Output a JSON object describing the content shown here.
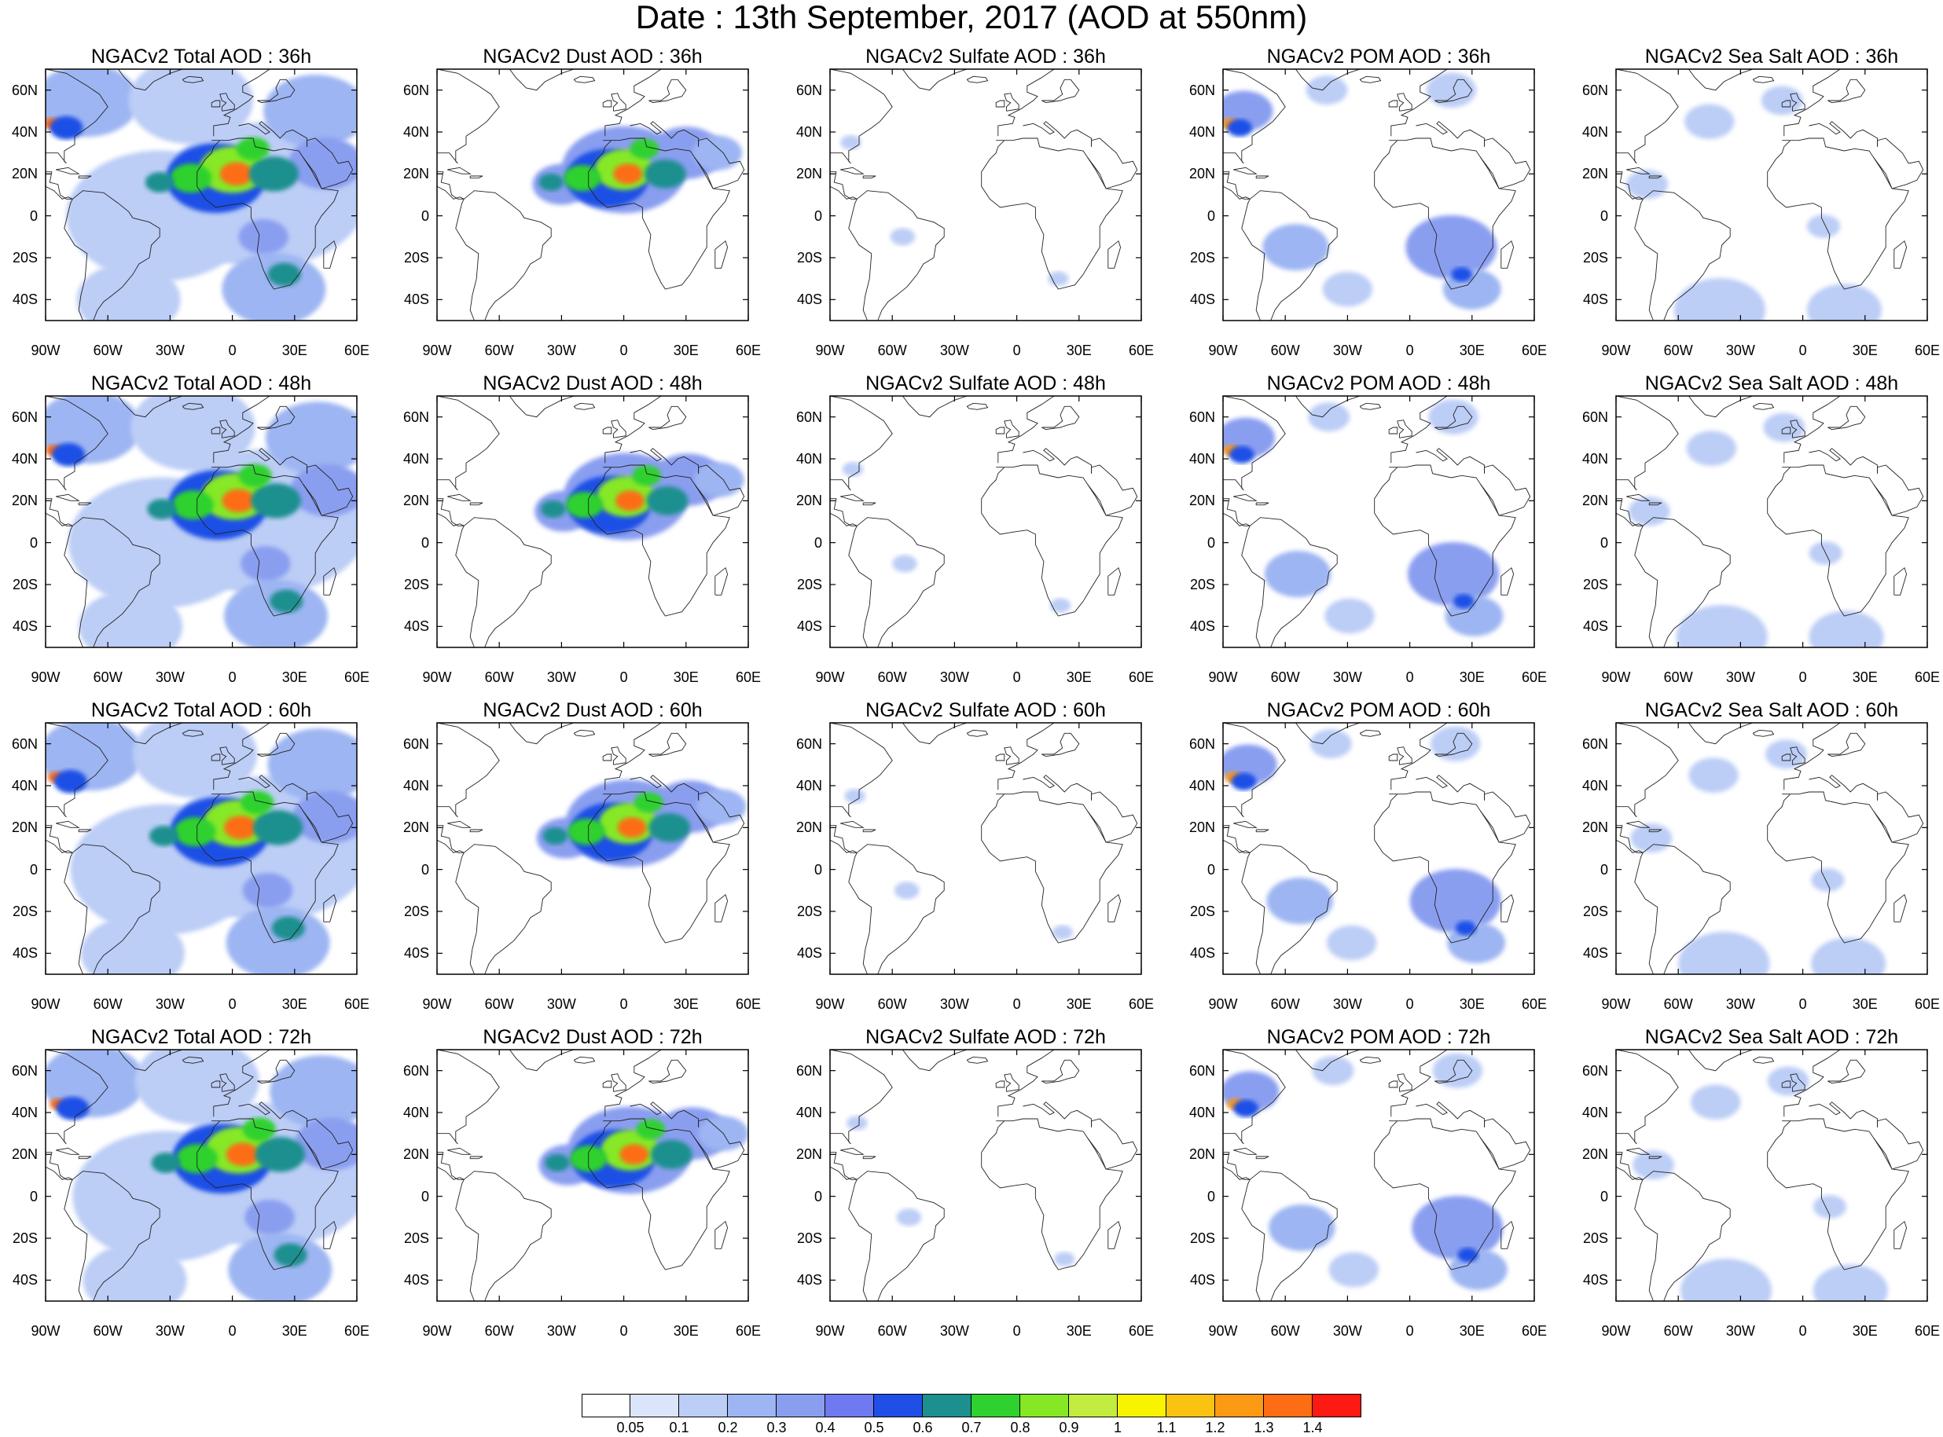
{
  "title": "Date : 13th September, 2017 (AOD at 550nm)",
  "rows": [
    "36h",
    "48h",
    "60h",
    "72h"
  ],
  "columns": [
    {
      "key": "total",
      "title_prefix": "NGACv2 Total AOD : "
    },
    {
      "key": "dust",
      "title_prefix": "NGACv2 Dust AOD : "
    },
    {
      "key": "sulfate",
      "title_prefix": "NGACv2 Sulfate AOD : "
    },
    {
      "key": "pom",
      "title_prefix": "NGACv2 POM AOD : "
    },
    {
      "key": "seasalt",
      "title_prefix": "NGACv2 Sea Salt AOD : "
    }
  ],
  "panel_titles": [
    [
      "NGACv2 Total AOD : 36h",
      "NGACv2 Dust AOD : 36h",
      "NGACv2 Sulfate AOD : 36h",
      "NGACv2 POM AOD : 36h",
      "NGACv2 Sea Salt AOD : 36h"
    ],
    [
      "NGACv2 Total AOD : 48h",
      "NGACv2 Dust AOD : 48h",
      "NGACv2 Sulfate AOD : 48h",
      "NGACv2 POM AOD : 48h",
      "NGACv2 Sea Salt AOD : 48h"
    ],
    [
      "NGACv2 Total AOD : 60h",
      "NGACv2 Dust AOD : 60h",
      "NGACv2 Sulfate AOD : 60h",
      "NGACv2 POM AOD : 60h",
      "NGACv2 Sea Salt AOD : 60h"
    ],
    [
      "NGACv2 Total AOD : 72h",
      "NGACv2 Dust AOD : 72h",
      "NGACv2 Sulfate AOD : 72h",
      "NGACv2 POM AOD : 72h",
      "NGACv2 Sea Salt  AOD : 72h"
    ]
  ],
  "map": {
    "lon_range": [
      -90,
      60
    ],
    "lat_range": [
      -50,
      70
    ],
    "lon_ticks": [
      -90,
      -60,
      -30,
      0,
      30,
      60
    ],
    "lon_labels": [
      "90W",
      "60W",
      "30W",
      "0",
      "30E",
      "60E"
    ],
    "lat_ticks": [
      60,
      40,
      20,
      0,
      -20,
      -40
    ],
    "lat_labels": [
      "60N",
      "40N",
      "20N",
      "0",
      "20S",
      "40S"
    ]
  },
  "colorbar": {
    "colors": [
      "#ffffff",
      "#dbe5fa",
      "#bccdf6",
      "#9db5f2",
      "#8a9ef0",
      "#6f7af0",
      "#1f4fe6",
      "#1d8f8f",
      "#2fd12f",
      "#86e825",
      "#c2ec3f",
      "#f8f400",
      "#fbc311",
      "#fc9a14",
      "#fd6d13",
      "#fd1a13"
    ],
    "labels": [
      "0.05",
      "0.1",
      "0.2",
      "0.3",
      "0.4",
      "0.5",
      "0.6",
      "0.7",
      "0.8",
      "0.9",
      "1",
      "1.1",
      "1.2",
      "1.3",
      "1.4"
    ]
  },
  "fields": {
    "total": [
      {
        "lon": -35,
        "lat": 0,
        "r": 45,
        "v": 0.18
      },
      {
        "lon": 15,
        "lat": 10,
        "r": 50,
        "v": 0.15
      },
      {
        "lon": -70,
        "lat": 55,
        "r": 25,
        "v": 0.25
      },
      {
        "lon": -20,
        "lat": 55,
        "r": 30,
        "v": 0.15
      },
      {
        "lon": 40,
        "lat": 50,
        "r": 25,
        "v": 0.25
      },
      {
        "lon": -50,
        "lat": -40,
        "r": 25,
        "v": 0.12
      },
      {
        "lon": 20,
        "lat": -35,
        "r": 25,
        "v": 0.2
      },
      {
        "lon": 45,
        "lat": 25,
        "r": 18,
        "v": 0.3
      },
      {
        "lon": -87,
        "lat": 44,
        "r": 4,
        "v": 1.3
      },
      {
        "lon": -80,
        "lat": 42,
        "r": 8,
        "v": 0.5
      },
      {
        "lon": -8,
        "lat": 18,
        "r": 24,
        "v": 0.5
      },
      {
        "lon": 0,
        "lat": 22,
        "r": 16,
        "v": 0.85
      },
      {
        "lon": 2,
        "lat": 20,
        "r": 8,
        "v": 1.35
      },
      {
        "lon": -20,
        "lat": 18,
        "r": 10,
        "v": 0.7
      },
      {
        "lon": -35,
        "lat": 16,
        "r": 7,
        "v": 0.65
      },
      {
        "lon": 20,
        "lat": 20,
        "r": 12,
        "v": 0.6
      },
      {
        "lon": 10,
        "lat": 32,
        "r": 8,
        "v": 0.7
      },
      {
        "lon": 25,
        "lat": -28,
        "r": 8,
        "v": 0.6
      },
      {
        "lon": 15,
        "lat": -10,
        "r": 12,
        "v": 0.35
      }
    ],
    "dust": [
      {
        "lon": 0,
        "lat": 22,
        "r": 30,
        "v": 0.3
      },
      {
        "lon": -30,
        "lat": 15,
        "r": 14,
        "v": 0.35
      },
      {
        "lon": 30,
        "lat": 30,
        "r": 18,
        "v": 0.3
      },
      {
        "lon": -8,
        "lat": 18,
        "r": 20,
        "v": 0.5
      },
      {
        "lon": 0,
        "lat": 22,
        "r": 14,
        "v": 0.85
      },
      {
        "lon": 2,
        "lat": 20,
        "r": 7,
        "v": 1.35
      },
      {
        "lon": -20,
        "lat": 18,
        "r": 9,
        "v": 0.7
      },
      {
        "lon": -35,
        "lat": 16,
        "r": 6,
        "v": 0.65
      },
      {
        "lon": 20,
        "lat": 20,
        "r": 10,
        "v": 0.6
      },
      {
        "lon": 10,
        "lat": 32,
        "r": 7,
        "v": 0.7
      },
      {
        "lon": 45,
        "lat": 30,
        "r": 12,
        "v": 0.25
      }
    ],
    "sulfate": [
      {
        "lon": -55,
        "lat": -10,
        "r": 6,
        "v": 0.1
      },
      {
        "lon": 20,
        "lat": -30,
        "r": 5,
        "v": 0.12
      },
      {
        "lon": -80,
        "lat": 35,
        "r": 5,
        "v": 0.12
      }
    ],
    "pom": [
      {
        "lon": 20,
        "lat": -15,
        "r": 22,
        "v": 0.3
      },
      {
        "lon": -55,
        "lat": -15,
        "r": 16,
        "v": 0.25
      },
      {
        "lon": -30,
        "lat": -35,
        "r": 12,
        "v": 0.12
      },
      {
        "lon": 30,
        "lat": -35,
        "r": 14,
        "v": 0.2
      },
      {
        "lon": -80,
        "lat": 50,
        "r": 14,
        "v": 0.3
      },
      {
        "lon": -87,
        "lat": 44,
        "r": 4,
        "v": 1.2
      },
      {
        "lon": -82,
        "lat": 42,
        "r": 6,
        "v": 0.5
      },
      {
        "lon": -40,
        "lat": 60,
        "r": 10,
        "v": 0.12
      },
      {
        "lon": 20,
        "lat": 60,
        "r": 12,
        "v": 0.15
      },
      {
        "lon": 25,
        "lat": -28,
        "r": 5,
        "v": 0.55
      }
    ],
    "seasalt": [
      {
        "lon": -40,
        "lat": -45,
        "r": 22,
        "v": 0.12
      },
      {
        "lon": 20,
        "lat": -45,
        "r": 18,
        "v": 0.18
      },
      {
        "lon": -75,
        "lat": 15,
        "r": 10,
        "v": 0.12
      },
      {
        "lon": -45,
        "lat": 45,
        "r": 12,
        "v": 0.12
      },
      {
        "lon": -10,
        "lat": 55,
        "r": 10,
        "v": 0.15
      },
      {
        "lon": 10,
        "lat": -5,
        "r": 8,
        "v": 0.1
      }
    ]
  }
}
